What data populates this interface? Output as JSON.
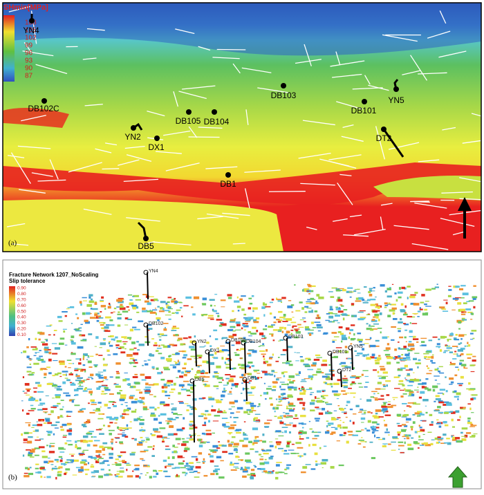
{
  "panel_a": {
    "label": "(a)",
    "colorbar": {
      "title": "SHmin[MPa]",
      "ticks": [
        "108",
        "105",
        "102",
        "99",
        "96",
        "93",
        "90",
        "87"
      ]
    },
    "wells": [
      "YN4",
      "DB102C",
      "YN2",
      "DX1",
      "DB105",
      "DB104",
      "DB103",
      "DB101",
      "YN5",
      "DT2",
      "DB1",
      "DB5"
    ]
  },
  "panel_b": {
    "label": "(b)",
    "title": "Fracture Network 1207_NoScaling",
    "subtitle": "Slip tolerance",
    "colorbar": {
      "ticks": [
        "0.90",
        "0.80",
        "0.70",
        "0.60",
        "0.50",
        "0.40",
        "0.30",
        "0.20",
        "0.10"
      ]
    },
    "wells": [
      "YN4",
      "DB102",
      "YN2",
      "DX1",
      "DB105",
      "DB104",
      "DB103",
      "DB101",
      "YN5",
      "DT2",
      "DB5",
      "DB1"
    ]
  }
}
